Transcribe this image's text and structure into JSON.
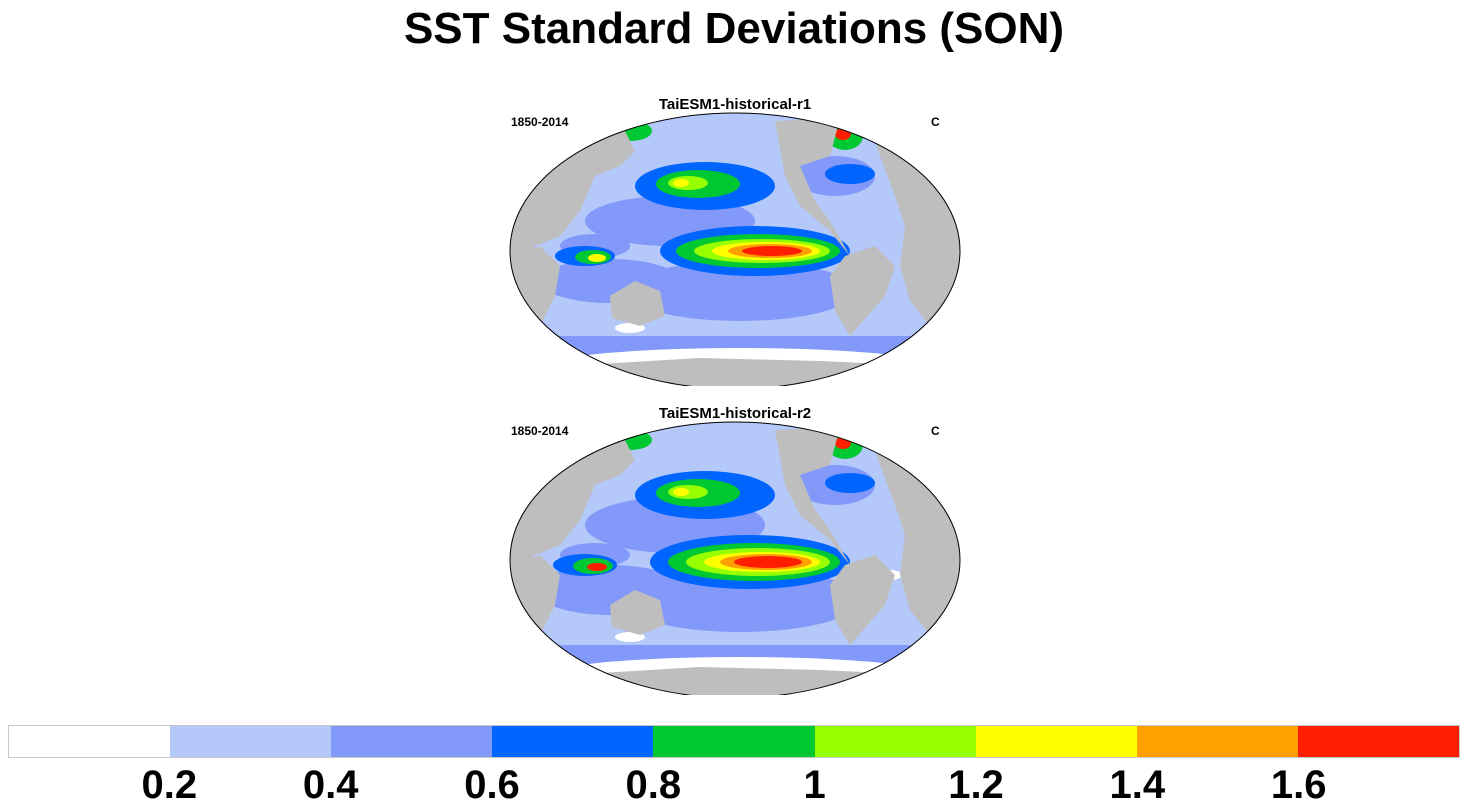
{
  "title": "SST Standard Deviations (SON)",
  "panels": [
    {
      "title": "TaiESM1-historical-r1",
      "left": "1850-2014",
      "right": "C"
    },
    {
      "title": "TaiESM1-historical-r2",
      "left": "1850-2014",
      "right": "C"
    }
  ],
  "colorbar": {
    "colors": [
      "#ffffff",
      "#b4c8fa",
      "#8299fa",
      "#0064ff",
      "#00c832",
      "#96ff00",
      "#ffff00",
      "#ffa000",
      "#ff1e00"
    ],
    "labels": [
      "0.2",
      "0.4",
      "0.6",
      "0.8",
      "1",
      "1.2",
      "1.4",
      "1.6"
    ]
  },
  "map_colors": {
    "land": "#bebebe",
    "ocean_base": "#b4c8fa"
  }
}
